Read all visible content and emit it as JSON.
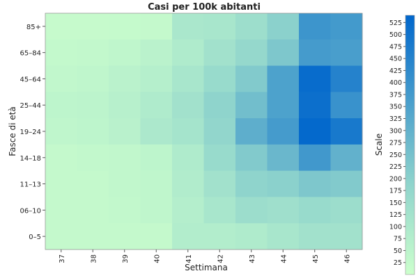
{
  "chart_data": {
    "type": "heatmap",
    "title": "Casi per 100k abitanti",
    "xlabel": "Settimana",
    "ylabel": "Fasce di età",
    "colorbar_label": "Scale",
    "x": [
      "37",
      "38",
      "39",
      "40",
      "41",
      "42",
      "43",
      "44",
      "45",
      "46"
    ],
    "y": [
      "85+",
      "65–84",
      "45–64",
      "25–44",
      "19–24",
      "14–18",
      "11–13",
      "06–10",
      "0–5"
    ],
    "values": [
      [
        20,
        20,
        22,
        25,
        105,
        110,
        145,
        200,
        390,
        375
      ],
      [
        28,
        30,
        40,
        55,
        90,
        130,
        170,
        230,
        370,
        360
      ],
      [
        35,
        40,
        55,
        70,
        110,
        160,
        220,
        350,
        520,
        450
      ],
      [
        45,
        50,
        65,
        90,
        130,
        190,
        260,
        350,
        510,
        400
      ],
      [
        40,
        45,
        60,
        100,
        120,
        180,
        310,
        370,
        530,
        480
      ],
      [
        25,
        30,
        35,
        45,
        90,
        160,
        220,
        280,
        380,
        300
      ],
      [
        25,
        25,
        35,
        40,
        85,
        130,
        190,
        200,
        230,
        220
      ],
      [
        25,
        25,
        30,
        40,
        75,
        110,
        150,
        140,
        160,
        150
      ],
      [
        25,
        25,
        25,
        25,
        80,
        80,
        90,
        110,
        130,
        130
      ]
    ],
    "zlim": [
      0,
      540
    ],
    "colorbar_ticks": [
      25,
      50,
      75,
      100,
      125,
      150,
      175,
      200,
      225,
      250,
      275,
      300,
      325,
      350,
      375,
      400,
      425,
      450,
      475,
      500,
      525
    ],
    "colors": {
      "low": "#ccffcc",
      "mid": "#8fd4cc",
      "high": "#0066cc"
    }
  }
}
